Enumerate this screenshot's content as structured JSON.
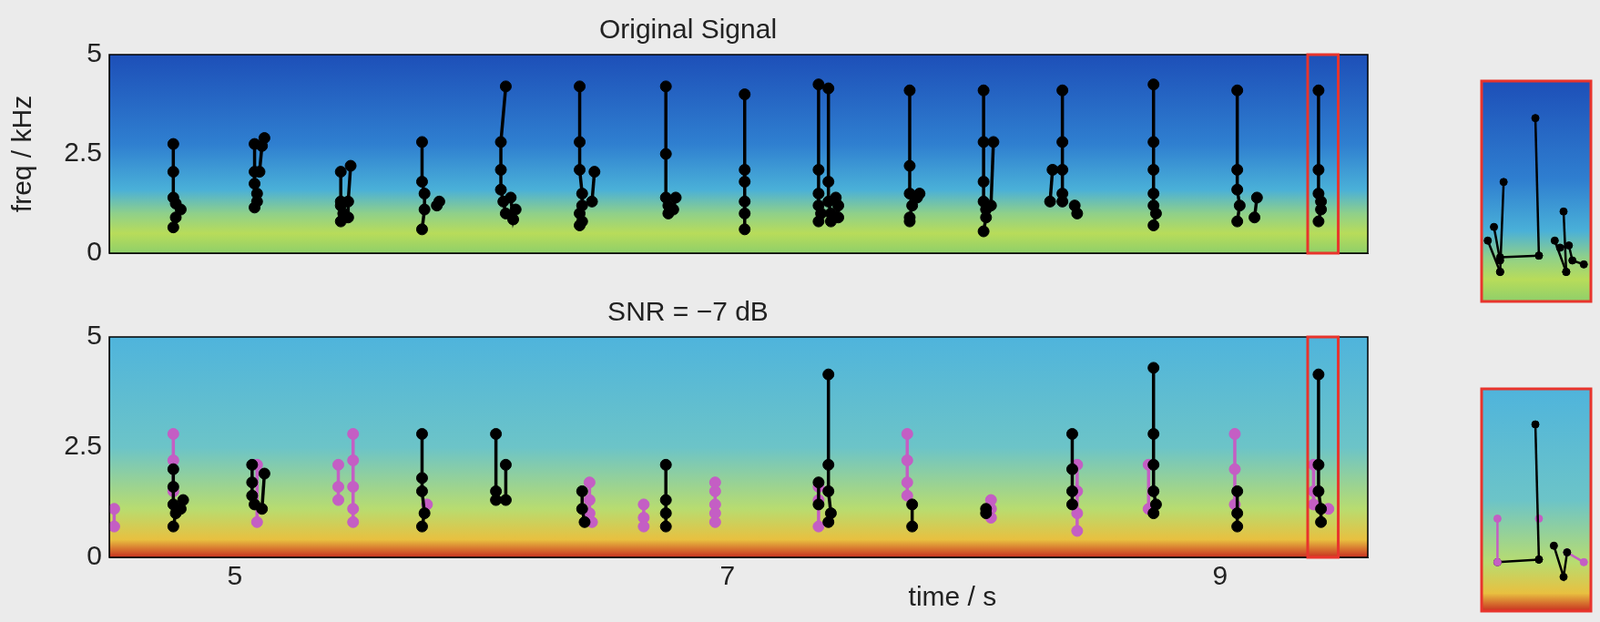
{
  "chart_data": [
    {
      "type": "line",
      "title": "Original Signal",
      "y_label": "freq / kHz",
      "xlim": [
        4.49,
        9.6
      ],
      "ylim": [
        0,
        5
      ],
      "yticks": [
        0,
        2.5,
        5
      ],
      "tick_labels": "y",
      "grid": false,
      "marker": "circle",
      "line_style": "solid",
      "series": [
        {
          "color": "#000000",
          "x": [
            4.75,
            4.75,
            4.75,
            4.76,
            4.78,
            4.76,
            4.75
          ],
          "y": [
            2.75,
            2.05,
            1.4,
            1.25,
            1.1,
            0.9,
            0.65
          ]
        },
        {
          "color": "#000000",
          "x": [
            5.08,
            5.08,
            5.08,
            5.09,
            5.09,
            5.08
          ],
          "y": [
            2.75,
            2.05,
            1.75,
            1.5,
            1.3,
            1.15
          ]
        },
        {
          "color": "#000000",
          "x": [
            5.12,
            5.11,
            5.1
          ],
          "y": [
            2.9,
            2.7,
            2.05
          ]
        },
        {
          "color": "#000000",
          "x": [
            5.43,
            5.43,
            5.43,
            5.44,
            5.43
          ],
          "y": [
            2.05,
            1.3,
            1.2,
            1.0,
            0.8
          ]
        },
        {
          "color": "#000000",
          "x": [
            5.47,
            5.46,
            5.46
          ],
          "y": [
            2.2,
            1.3,
            0.9
          ]
        },
        {
          "color": "#000000",
          "x": [
            5.76,
            5.76,
            5.77,
            5.77,
            5.76
          ],
          "y": [
            2.8,
            1.8,
            1.5,
            1.1,
            0.6
          ]
        },
        {
          "color": "#000000",
          "x": [
            5.83,
            5.82
          ],
          "y": [
            1.3,
            1.2
          ]
        },
        {
          "color": "#000000",
          "x": [
            6.1,
            6.08,
            6.08,
            6.08,
            6.09,
            6.1
          ],
          "y": [
            4.2,
            2.8,
            2.1,
            1.6,
            1.3,
            1.0
          ]
        },
        {
          "color": "#000000",
          "x": [
            6.14,
            6.13,
            6.12
          ],
          "y": [
            1.1,
            0.85,
            1.4
          ]
        },
        {
          "color": "#000000",
          "x": [
            6.4,
            6.4,
            6.4,
            6.41,
            6.41,
            6.4,
            6.41,
            6.4
          ],
          "y": [
            4.2,
            2.8,
            2.1,
            1.5,
            1.2,
            1.0,
            0.8,
            0.7
          ]
        },
        {
          "color": "#000000",
          "x": [
            6.46,
            6.45
          ],
          "y": [
            2.05,
            1.3
          ]
        },
        {
          "color": "#000000",
          "x": [
            6.75,
            6.75,
            6.75,
            6.76,
            6.76
          ],
          "y": [
            4.2,
            2.5,
            1.4,
            1.2,
            1.0
          ]
        },
        {
          "color": "#000000",
          "x": [
            6.79,
            6.78
          ],
          "y": [
            1.4,
            1.1
          ]
        },
        {
          "color": "#000000",
          "x": [
            7.07,
            7.07,
            7.07,
            7.07,
            7.07,
            7.07
          ],
          "y": [
            4.0,
            2.1,
            1.8,
            1.3,
            1.0,
            0.6
          ]
        },
        {
          "color": "#000000",
          "x": [
            7.37,
            7.37,
            7.37,
            7.37,
            7.38,
            7.37
          ],
          "y": [
            4.25,
            2.1,
            1.5,
            1.2,
            1.0,
            0.8
          ]
        },
        {
          "color": "#000000",
          "x": [
            7.41,
            7.41,
            7.41,
            7.42,
            7.42
          ],
          "y": [
            4.15,
            1.8,
            1.3,
            1.0,
            0.8
          ]
        },
        {
          "color": "#000000",
          "x": [
            7.45,
            7.45,
            7.44
          ],
          "y": [
            1.2,
            0.9,
            1.4
          ]
        },
        {
          "color": "#000000",
          "x": [
            7.74,
            7.74,
            7.74,
            7.75,
            7.74,
            7.74
          ],
          "y": [
            4.1,
            2.2,
            1.5,
            1.2,
            0.9,
            0.8
          ]
        },
        {
          "color": "#000000",
          "x": [
            7.78,
            7.77
          ],
          "y": [
            1.5,
            1.4
          ]
        },
        {
          "color": "#000000",
          "x": [
            8.04,
            8.04,
            8.04,
            8.04,
            8.05,
            8.05,
            8.04
          ],
          "y": [
            4.1,
            2.8,
            1.8,
            1.3,
            1.1,
            0.9,
            0.55
          ]
        },
        {
          "color": "#000000",
          "x": [
            8.08,
            8.07
          ],
          "y": [
            2.8,
            1.2
          ]
        },
        {
          "color": "#000000",
          "x": [
            8.36,
            8.36,
            8.36,
            8.36,
            8.36
          ],
          "y": [
            4.1,
            2.8,
            2.1,
            1.5,
            1.3
          ]
        },
        {
          "color": "#000000",
          "x": [
            8.32,
            8.31
          ],
          "y": [
            2.1,
            1.3
          ]
        },
        {
          "color": "#000000",
          "x": [
            8.41,
            8.42
          ],
          "y": [
            1.2,
            1.0
          ]
        },
        {
          "color": "#000000",
          "x": [
            8.73,
            8.73,
            8.73,
            8.73,
            8.73,
            8.74,
            8.73
          ],
          "y": [
            4.25,
            2.8,
            2.1,
            1.5,
            1.2,
            1.0,
            0.7
          ]
        },
        {
          "color": "#000000",
          "x": [
            9.07,
            9.07,
            9.07,
            9.08,
            9.07
          ],
          "y": [
            4.1,
            2.1,
            1.6,
            1.2,
            0.8
          ]
        },
        {
          "color": "#000000",
          "x": [
            9.15,
            9.14
          ],
          "y": [
            1.4,
            0.9
          ]
        },
        {
          "color": "#000000",
          "x": [
            9.4,
            9.4,
            9.4,
            9.41,
            9.41,
            9.4
          ],
          "y": [
            4.1,
            2.1,
            1.5,
            1.3,
            1.1,
            0.8
          ]
        }
      ]
    },
    {
      "type": "line",
      "title": "SNR = −7 dB",
      "x_label": "time / s",
      "xlim": [
        4.49,
        9.6
      ],
      "ylim": [
        0,
        5
      ],
      "xticks": [
        5,
        7,
        9
      ],
      "yticks": [
        0,
        2.5,
        5
      ],
      "grid": false,
      "marker": "circle",
      "line_style": "solid",
      "series": [
        {
          "color": "#000000",
          "x": [
            4.75,
            4.75,
            4.75,
            4.76,
            4.75
          ],
          "y": [
            2.0,
            1.6,
            1.2,
            1.0,
            0.7
          ]
        },
        {
          "color": "#000000",
          "x": [
            4.79,
            4.78
          ],
          "y": [
            1.3,
            1.1
          ]
        },
        {
          "color": "#000000",
          "x": [
            5.07,
            5.07,
            5.07,
            5.08
          ],
          "y": [
            2.1,
            1.7,
            1.4,
            1.2
          ]
        },
        {
          "color": "#000000",
          "x": [
            5.12,
            5.11
          ],
          "y": [
            1.9,
            1.1
          ]
        },
        {
          "color": "#000000",
          "x": [
            5.76,
            5.76,
            5.76,
            5.77,
            5.76
          ],
          "y": [
            2.8,
            1.8,
            1.5,
            1.0,
            0.7
          ]
        },
        {
          "color": "#000000",
          "x": [
            6.06,
            6.06,
            6.06
          ],
          "y": [
            2.8,
            1.5,
            1.3
          ]
        },
        {
          "color": "#000000",
          "x": [
            6.1,
            6.1
          ],
          "y": [
            2.1,
            1.3
          ]
        },
        {
          "color": "#000000",
          "x": [
            6.41,
            6.41,
            6.42
          ],
          "y": [
            1.5,
            1.1,
            0.8
          ]
        },
        {
          "color": "#000000",
          "x": [
            6.75,
            6.75,
            6.75,
            6.75
          ],
          "y": [
            2.1,
            1.3,
            1.0,
            0.7
          ]
        },
        {
          "color": "#000000",
          "x": [
            7.41,
            7.41,
            7.41,
            7.42,
            7.41
          ],
          "y": [
            4.15,
            2.1,
            1.5,
            1.0,
            0.8
          ]
        },
        {
          "color": "#000000",
          "x": [
            7.37,
            7.37
          ],
          "y": [
            1.7,
            1.2
          ]
        },
        {
          "color": "#000000",
          "x": [
            7.75,
            7.75
          ],
          "y": [
            1.2,
            0.7
          ]
        },
        {
          "color": "#000000",
          "x": [
            8.05,
            8.05
          ],
          "y": [
            1.1,
            1.0
          ]
        },
        {
          "color": "#000000",
          "x": [
            8.4,
            8.4,
            8.4,
            8.4
          ],
          "y": [
            2.8,
            2.0,
            1.5,
            1.2
          ]
        },
        {
          "color": "#000000",
          "x": [
            8.73,
            8.73,
            8.73,
            8.73,
            8.74,
            8.73
          ],
          "y": [
            4.3,
            2.8,
            2.1,
            1.5,
            1.2,
            1.0
          ]
        },
        {
          "color": "#000000",
          "x": [
            9.07,
            9.07,
            9.07
          ],
          "y": [
            1.5,
            1.0,
            0.7
          ]
        },
        {
          "color": "#000000",
          "x": [
            9.4,
            9.4,
            9.4,
            9.41,
            9.41
          ],
          "y": [
            4.15,
            2.1,
            1.5,
            1.1,
            0.8
          ]
        },
        {
          "color": "#c45ec4",
          "x": [
            4.51,
            4.51
          ],
          "y": [
            1.1,
            0.7
          ]
        },
        {
          "color": "#c45ec4",
          "x": [
            4.75,
            4.75,
            4.75
          ],
          "y": [
            2.8,
            2.2,
            1.5
          ]
        },
        {
          "color": "#c45ec4",
          "x": [
            5.09,
            5.09
          ],
          "y": [
            2.1,
            0.8
          ]
        },
        {
          "color": "#c45ec4",
          "x": [
            5.42,
            5.42,
            5.42
          ],
          "y": [
            2.1,
            1.6,
            1.3
          ]
        },
        {
          "color": "#c45ec4",
          "x": [
            5.48,
            5.48,
            5.48,
            5.48,
            5.48
          ],
          "y": [
            2.8,
            2.2,
            1.6,
            1.1,
            0.8
          ]
        },
        {
          "color": "#c45ec4",
          "x": [
            5.78
          ],
          "y": [
            1.2
          ]
        },
        {
          "color": "#c45ec4",
          "x": [
            6.44,
            6.44,
            6.44,
            6.45
          ],
          "y": [
            1.7,
            1.3,
            1.0,
            0.8
          ]
        },
        {
          "color": "#c45ec4",
          "x": [
            6.66,
            6.66,
            6.66
          ],
          "y": [
            1.2,
            0.9,
            0.7
          ]
        },
        {
          "color": "#c45ec4",
          "x": [
            6.95,
            6.95,
            6.95,
            6.95,
            6.95
          ],
          "y": [
            1.7,
            1.5,
            1.2,
            1.0,
            0.8
          ]
        },
        {
          "color": "#c45ec4",
          "x": [
            7.37,
            7.37,
            7.37
          ],
          "y": [
            1.6,
            1.3,
            0.7
          ]
        },
        {
          "color": "#c45ec4",
          "x": [
            7.73,
            7.73,
            7.73,
            7.73
          ],
          "y": [
            2.8,
            2.2,
            1.7,
            1.4
          ]
        },
        {
          "color": "#c45ec4",
          "x": [
            8.07,
            8.07,
            8.07
          ],
          "y": [
            1.3,
            1.1,
            0.9
          ]
        },
        {
          "color": "#c45ec4",
          "x": [
            8.42,
            8.42,
            8.42,
            8.42
          ],
          "y": [
            2.1,
            1.5,
            1.0,
            0.6
          ]
        },
        {
          "color": "#c45ec4",
          "x": [
            8.71,
            8.71
          ],
          "y": [
            2.1,
            1.1
          ]
        },
        {
          "color": "#c45ec4",
          "x": [
            9.06,
            9.06,
            9.06
          ],
          "y": [
            2.8,
            2.0,
            1.2
          ]
        },
        {
          "color": "#c45ec4",
          "x": [
            9.38,
            9.38,
            9.38
          ],
          "y": [
            2.1,
            1.5,
            1.2
          ]
        },
        {
          "color": "#c45ec4",
          "x": [
            9.44
          ],
          "y": [
            1.1
          ]
        }
      ]
    },
    {
      "type": "line",
      "xlim": [
        9.356,
        9.48
      ],
      "ylim": [
        0,
        5
      ],
      "tick_labels": false,
      "grid": false,
      "marker": "circle",
      "line_style": "solid",
      "series": [
        {
          "color": "#000000",
          "x": [
            9.363,
            9.377
          ],
          "y": [
            1.38,
            0.67
          ]
        },
        {
          "color": "#000000",
          "x": [
            9.37,
            9.377
          ],
          "y": [
            1.69,
            0.93
          ]
        },
        {
          "color": "#000000",
          "x": [
            9.381,
            9.377
          ],
          "y": [
            2.71,
            0.67
          ]
        },
        {
          "color": "#000000",
          "x": [
            9.377,
            9.421
          ],
          "y": [
            1.0,
            1.04
          ]
        },
        {
          "color": "#000000",
          "x": [
            9.417,
            9.421
          ],
          "y": [
            4.16,
            1.04
          ]
        },
        {
          "color": "#000000",
          "x": [
            9.439,
            9.452
          ],
          "y": [
            1.38,
            0.67
          ]
        },
        {
          "color": "#000000",
          "x": [
            9.449,
            9.452
          ],
          "y": [
            2.04,
            0.67
          ]
        },
        {
          "color": "#000000",
          "x": [
            9.445,
            9.455,
            9.459,
            9.472
          ],
          "y": [
            1.22,
            1.27,
            0.93,
            0.84
          ]
        }
      ]
    },
    {
      "type": "line",
      "xlim": [
        9.356,
        9.48
      ],
      "ylim": [
        0,
        5
      ],
      "tick_labels": false,
      "grid": false,
      "marker": "circle",
      "line_style": "solid",
      "series": [
        {
          "color": "#c45ec4",
          "x": [
            9.374,
            9.374
          ],
          "y": [
            2.08,
            1.1
          ]
        },
        {
          "color": "#000000",
          "x": [
            9.374,
            9.421
          ],
          "y": [
            1.1,
            1.16
          ]
        },
        {
          "color": "#000000",
          "x": [
            9.417,
            9.421
          ],
          "y": [
            4.2,
            1.16
          ]
        },
        {
          "color": "#c45ec4",
          "x": [
            9.421
          ],
          "y": [
            2.08
          ]
        },
        {
          "color": "#000000",
          "x": [
            9.438,
            9.449,
            9.453
          ],
          "y": [
            1.47,
            0.77,
            1.32
          ]
        },
        {
          "color": "#c45ec4",
          "x": [
            9.453,
            9.472
          ],
          "y": [
            1.32,
            1.1
          ]
        }
      ]
    }
  ]
}
